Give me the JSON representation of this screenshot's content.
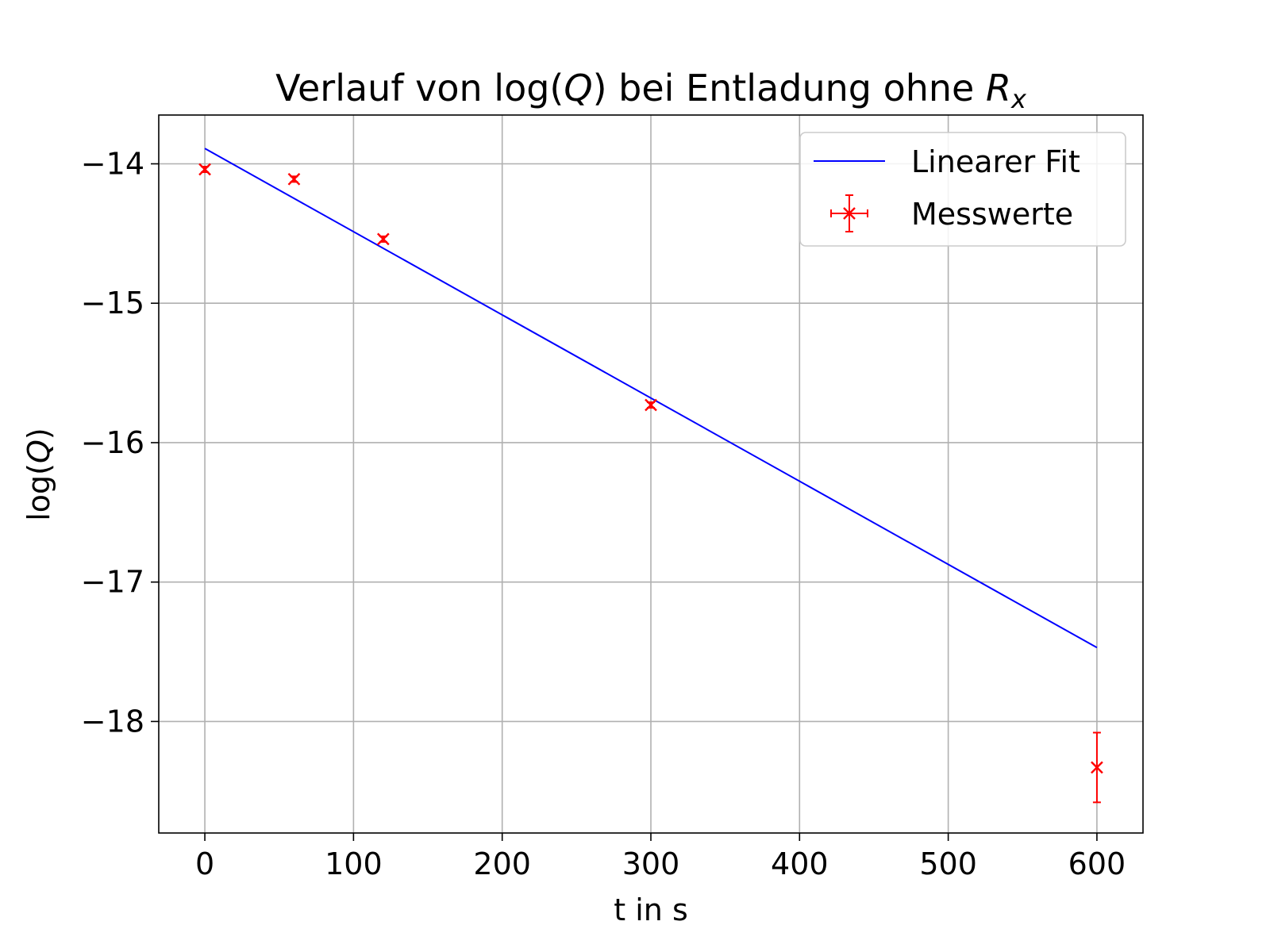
{
  "chart_data": {
    "type": "scatter",
    "title": {
      "prefix": "Verlauf von log(",
      "q": "Q",
      "middle": ") bei Entladung ohne ",
      "r": "R",
      "r_sub": "x"
    },
    "xlabel": "t in s",
    "ylabel": {
      "prefix": "log(",
      "q": "Q",
      "suffix": ")"
    },
    "xlim": [
      -31,
      631
    ],
    "ylim": [
      -18.8,
      -13.65
    ],
    "x_ticks": [
      0,
      100,
      200,
      300,
      400,
      500,
      600
    ],
    "x_tick_labels": [
      "0",
      "100",
      "200",
      "300",
      "400",
      "500",
      "600"
    ],
    "y_ticks": [
      -14,
      -15,
      -16,
      -17,
      -18
    ],
    "y_tick_labels": [
      "−14",
      "−15",
      "−16",
      "−17",
      "−18"
    ],
    "grid": true,
    "legend_position": "top-right",
    "series": [
      {
        "name": "Linearer Fit",
        "kind": "line",
        "color": "#0000ff",
        "x": [
          0,
          600
        ],
        "y": [
          -13.89,
          -17.47
        ]
      },
      {
        "name": "Messwerte",
        "kind": "errorbar",
        "color": "#ff0000",
        "marker": "x",
        "x": [
          0,
          60,
          120,
          300,
          600
        ],
        "y": [
          -14.04,
          -14.11,
          -14.54,
          -15.73,
          -18.33
        ],
        "yerr": [
          0.02,
          0.02,
          0.02,
          0.02,
          0.25
        ],
        "xerr": [
          1,
          1,
          1,
          1,
          1
        ]
      }
    ]
  }
}
